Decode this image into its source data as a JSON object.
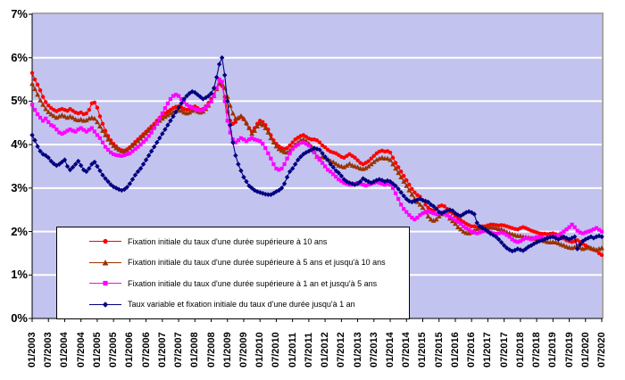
{
  "chart_data": {
    "type": "line",
    "title": "",
    "y_axis": {
      "min": 0,
      "max": 7,
      "step": 1,
      "tick_labels": [
        "0%",
        "1%",
        "2%",
        "3%",
        "4%",
        "5%",
        "6%",
        "7%"
      ]
    },
    "x_axis": {
      "months_per_tick": 6,
      "tick_labels": [
        "01/2003",
        "07/2003",
        "01/2004",
        "07/2004",
        "01/2005",
        "07/2005",
        "01/2006",
        "07/2006",
        "01/2007",
        "07/2007",
        "01/2008",
        "07/2008",
        "01/2009",
        "07/2009",
        "01/2010",
        "07/2010",
        "01/2011",
        "07/2011",
        "01/2012",
        "07/2012",
        "01/2013",
        "07/2013",
        "01/2014",
        "07/2014",
        "01/2015",
        "07/2015",
        "01/2016",
        "07/2016",
        "01/2017",
        "07/2017",
        "01/2018",
        "07/2018",
        "01/2019",
        "07/2019",
        "01/2020",
        "07/2020"
      ]
    },
    "colors": {
      "plot_bg": "#C3C3F0",
      "gridline": "#FFFFFF",
      "axis": "#000000",
      "outer_border": "#A6A6A6"
    },
    "legend_position": "bottom-left-inside",
    "grid": "horizontal-only",
    "series": [
      {
        "name": "Fixation initiale du taux d'une durée supérieure à 10 ans",
        "color": "#FF0000",
        "marker": "circle",
        "values": [
          5.65,
          5.5,
          5.38,
          5.25,
          5.1,
          4.98,
          4.9,
          4.84,
          4.8,
          4.77,
          4.8,
          4.82,
          4.8,
          4.78,
          4.82,
          4.78,
          4.74,
          4.72,
          4.74,
          4.7,
          4.72,
          4.8,
          4.95,
          4.97,
          4.85,
          4.65,
          4.48,
          4.32,
          4.2,
          4.1,
          4.02,
          3.96,
          3.9,
          3.87,
          3.86,
          3.89,
          3.94,
          4.0,
          4.06,
          4.12,
          4.18,
          4.24,
          4.3,
          4.36,
          4.42,
          4.48,
          4.55,
          4.62,
          4.68,
          4.72,
          4.76,
          4.8,
          4.84,
          4.87,
          4.88,
          4.86,
          4.82,
          4.8,
          4.82,
          4.86,
          4.88,
          4.84,
          4.8,
          4.82,
          4.88,
          4.96,
          5.05,
          5.15,
          5.3,
          5.4,
          5.35,
          5.1,
          4.75,
          4.55,
          4.48,
          4.52,
          4.6,
          4.64,
          4.58,
          4.48,
          4.38,
          4.3,
          4.38,
          4.48,
          4.55,
          4.52,
          4.45,
          4.35,
          4.22,
          4.1,
          4.02,
          3.96,
          3.92,
          3.9,
          3.92,
          3.98,
          4.05,
          4.12,
          4.16,
          4.2,
          4.22,
          4.18,
          4.14,
          4.12,
          4.12,
          4.1,
          4.05,
          3.98,
          3.94,
          3.88,
          3.84,
          3.82,
          3.8,
          3.76,
          3.72,
          3.7,
          3.74,
          3.78,
          3.74,
          3.7,
          3.64,
          3.58,
          3.55,
          3.58,
          3.62,
          3.68,
          3.74,
          3.8,
          3.84,
          3.86,
          3.84,
          3.85,
          3.82,
          3.7,
          3.58,
          3.48,
          3.38,
          3.28,
          3.18,
          3.08,
          2.98,
          2.9,
          2.84,
          2.8,
          2.72,
          2.62,
          2.55,
          2.5,
          2.48,
          2.52,
          2.58,
          2.6,
          2.58,
          2.52,
          2.46,
          2.42,
          2.36,
          2.3,
          2.26,
          2.22,
          2.18,
          2.15,
          2.12,
          2.12,
          2.1,
          2.1,
          2.12,
          2.12,
          2.14,
          2.16,
          2.16,
          2.15,
          2.14,
          2.15,
          2.14,
          2.12,
          2.1,
          2.08,
          2.06,
          2.05,
          2.08,
          2.1,
          2.08,
          2.05,
          2.02,
          2.0,
          1.98,
          1.96,
          1.95,
          1.95,
          1.94,
          1.95,
          1.96,
          1.94,
          1.92,
          1.88,
          1.84,
          1.8,
          1.78,
          1.76,
          1.78,
          1.8,
          1.76,
          1.72,
          1.68,
          1.64,
          1.6,
          1.58,
          1.56,
          1.5,
          1.46
        ]
      },
      {
        "name": "Fixation initiale du taux d'une durée supérieure à 5 ans et  jusqu'à 10 ans",
        "color": "#993300",
        "marker": "triangle",
        "values": [
          5.4,
          5.28,
          5.15,
          5.02,
          4.92,
          4.82,
          4.75,
          4.7,
          4.66,
          4.62,
          4.65,
          4.68,
          4.65,
          4.62,
          4.65,
          4.62,
          4.58,
          4.56,
          4.58,
          4.55,
          4.56,
          4.6,
          4.62,
          4.6,
          4.52,
          4.42,
          4.32,
          4.22,
          4.12,
          4.04,
          3.97,
          3.92,
          3.88,
          3.85,
          3.84,
          3.87,
          3.92,
          3.97,
          4.02,
          4.08,
          4.14,
          4.2,
          4.26,
          4.32,
          4.38,
          4.42,
          4.48,
          4.55,
          4.6,
          4.64,
          4.68,
          4.72,
          4.75,
          4.78,
          4.8,
          4.78,
          4.74,
          4.72,
          4.74,
          4.78,
          4.8,
          4.76,
          4.74,
          4.76,
          4.82,
          4.9,
          5.0,
          5.12,
          5.28,
          5.42,
          5.4,
          5.3,
          5.1,
          4.9,
          4.72,
          4.6,
          4.62,
          4.66,
          4.6,
          4.5,
          4.38,
          4.25,
          4.32,
          4.42,
          4.48,
          4.45,
          4.38,
          4.28,
          4.15,
          4.05,
          3.96,
          3.9,
          3.86,
          3.83,
          3.82,
          3.86,
          3.94,
          4.0,
          4.05,
          4.1,
          4.12,
          4.08,
          4.02,
          3.96,
          3.85,
          3.72,
          3.68,
          3.72,
          3.7,
          3.66,
          3.62,
          3.6,
          3.56,
          3.52,
          3.5,
          3.48,
          3.52,
          3.56,
          3.52,
          3.5,
          3.48,
          3.45,
          3.44,
          3.46,
          3.5,
          3.55,
          3.6,
          3.65,
          3.68,
          3.7,
          3.68,
          3.68,
          3.65,
          3.55,
          3.45,
          3.35,
          3.25,
          3.15,
          3.05,
          2.95,
          2.85,
          2.75,
          2.68,
          2.62,
          2.55,
          2.45,
          2.35,
          2.28,
          2.25,
          2.28,
          2.35,
          2.4,
          2.42,
          2.38,
          2.3,
          2.24,
          2.18,
          2.1,
          2.05,
          2.0,
          1.97,
          1.96,
          1.98,
          2.02,
          2.06,
          2.08,
          2.1,
          2.1,
          2.08,
          2.1,
          2.09,
          2.08,
          2.06,
          2.05,
          2.02,
          1.98,
          1.96,
          1.94,
          1.92,
          1.9,
          1.9,
          1.88,
          1.87,
          1.86,
          1.85,
          1.84,
          1.83,
          1.82,
          1.8,
          1.78,
          1.76,
          1.75,
          1.76,
          1.75,
          1.73,
          1.7,
          1.68,
          1.65,
          1.63,
          1.62,
          1.64,
          1.66,
          1.63,
          1.6,
          1.62,
          1.64,
          1.62,
          1.6,
          1.58,
          1.6,
          1.62
        ]
      },
      {
        "name": "Fixation initiale du taux d'une durée supérieure à 1 an et  jusqu'à 5 ans",
        "color": "#FF00FF",
        "marker": "square",
        "values": [
          4.92,
          4.8,
          4.7,
          4.62,
          4.55,
          4.6,
          4.52,
          4.45,
          4.42,
          4.35,
          4.28,
          4.25,
          4.28,
          4.32,
          4.35,
          4.32,
          4.3,
          4.35,
          4.38,
          4.34,
          4.3,
          4.34,
          4.38,
          4.3,
          4.22,
          4.15,
          4.05,
          3.95,
          3.88,
          3.82,
          3.78,
          3.76,
          3.75,
          3.74,
          3.76,
          3.78,
          3.8,
          3.85,
          3.9,
          3.95,
          4.0,
          4.06,
          4.12,
          4.2,
          4.28,
          4.38,
          4.48,
          4.6,
          4.72,
          4.84,
          4.95,
          5.05,
          5.12,
          5.15,
          5.12,
          5.05,
          4.98,
          4.92,
          4.88,
          4.85,
          4.82,
          4.8,
          4.78,
          4.8,
          4.85,
          4.92,
          5.0,
          5.12,
          5.3,
          5.5,
          5.45,
          5.0,
          4.55,
          4.28,
          4.12,
          4.05,
          4.1,
          4.15,
          4.12,
          4.08,
          4.12,
          4.15,
          4.12,
          4.1,
          4.08,
          4.02,
          3.92,
          3.8,
          3.68,
          3.55,
          3.45,
          3.42,
          3.45,
          3.55,
          3.68,
          3.8,
          3.9,
          3.96,
          4.0,
          4.04,
          4.05,
          4.02,
          3.98,
          3.9,
          3.82,
          3.72,
          3.65,
          3.58,
          3.5,
          3.42,
          3.38,
          3.32,
          3.26,
          3.2,
          3.16,
          3.12,
          3.1,
          3.08,
          3.08,
          3.1,
          3.12,
          3.1,
          3.08,
          3.06,
          3.08,
          3.1,
          3.12,
          3.14,
          3.12,
          3.1,
          3.08,
          3.1,
          3.08,
          3.0,
          2.88,
          2.75,
          2.62,
          2.52,
          2.45,
          2.38,
          2.32,
          2.28,
          2.32,
          2.38,
          2.42,
          2.45,
          2.46,
          2.44,
          2.42,
          2.4,
          2.42,
          2.44,
          2.42,
          2.38,
          2.34,
          2.3,
          2.26,
          2.22,
          2.18,
          2.12,
          2.08,
          2.04,
          2.0,
          1.98,
          1.96,
          1.98,
          2.0,
          2.02,
          2.0,
          1.98,
          1.96,
          1.95,
          1.96,
          1.98,
          1.96,
          1.92,
          1.88,
          1.82,
          1.78,
          1.76,
          1.78,
          1.82,
          1.85,
          1.84,
          1.82,
          1.85,
          1.87,
          1.88,
          1.86,
          1.84,
          1.86,
          1.88,
          1.9,
          1.88,
          1.92,
          1.96,
          2.0,
          2.05,
          2.1,
          2.16,
          2.1,
          2.02,
          1.98,
          1.96,
          1.98,
          2.0,
          2.02,
          2.05,
          2.08,
          2.04,
          2.0
        ]
      },
      {
        "name": "Taux variable et fixation initiale du taux d'une durée jusqu'à 1 an",
        "color": "#000080",
        "marker": "diamond",
        "values": [
          4.22,
          4.1,
          3.96,
          3.85,
          3.78,
          3.75,
          3.7,
          3.62,
          3.56,
          3.52,
          3.55,
          3.6,
          3.65,
          3.5,
          3.42,
          3.48,
          3.55,
          3.62,
          3.52,
          3.42,
          3.38,
          3.45,
          3.55,
          3.6,
          3.5,
          3.4,
          3.3,
          3.22,
          3.15,
          3.08,
          3.03,
          3.0,
          2.97,
          2.95,
          2.97,
          3.02,
          3.1,
          3.2,
          3.3,
          3.38,
          3.45,
          3.55,
          3.65,
          3.75,
          3.85,
          3.95,
          4.05,
          4.15,
          4.25,
          4.35,
          4.45,
          4.55,
          4.65,
          4.75,
          4.85,
          4.95,
          5.05,
          5.12,
          5.18,
          5.22,
          5.2,
          5.15,
          5.1,
          5.05,
          5.08,
          5.12,
          5.18,
          5.3,
          5.55,
          5.85,
          6.0,
          5.6,
          5.0,
          4.45,
          4.05,
          3.75,
          3.55,
          3.4,
          3.25,
          3.15,
          3.05,
          3.0,
          2.95,
          2.92,
          2.9,
          2.88,
          2.86,
          2.85,
          2.85,
          2.88,
          2.92,
          2.95,
          3.0,
          3.1,
          3.25,
          3.38,
          3.45,
          3.55,
          3.65,
          3.72,
          3.78,
          3.82,
          3.85,
          3.88,
          3.92,
          3.9,
          3.88,
          3.8,
          3.72,
          3.65,
          3.55,
          3.48,
          3.4,
          3.35,
          3.28,
          3.2,
          3.15,
          3.12,
          3.1,
          3.08,
          3.1,
          3.15,
          3.22,
          3.18,
          3.15,
          3.12,
          3.15,
          3.18,
          3.2,
          3.18,
          3.15,
          3.17,
          3.15,
          3.1,
          3.05,
          2.98,
          2.9,
          2.82,
          2.75,
          2.7,
          2.68,
          2.7,
          2.73,
          2.75,
          2.72,
          2.7,
          2.68,
          2.62,
          2.58,
          2.52,
          2.45,
          2.42,
          2.45,
          2.48,
          2.5,
          2.48,
          2.42,
          2.38,
          2.36,
          2.4,
          2.44,
          2.46,
          2.44,
          2.4,
          2.2,
          2.12,
          2.08,
          2.05,
          2.0,
          1.95,
          1.92,
          1.88,
          1.82,
          1.75,
          1.68,
          1.62,
          1.58,
          1.55,
          1.57,
          1.6,
          1.58,
          1.56,
          1.6,
          1.65,
          1.68,
          1.72,
          1.75,
          1.78,
          1.8,
          1.82,
          1.85,
          1.87,
          1.88,
          1.85,
          1.82,
          1.85,
          1.88,
          1.85,
          1.82,
          1.85,
          1.88,
          1.6,
          1.7,
          1.78,
          1.82,
          1.85,
          1.88,
          1.85,
          1.88,
          1.9,
          1.88
        ]
      }
    ]
  }
}
